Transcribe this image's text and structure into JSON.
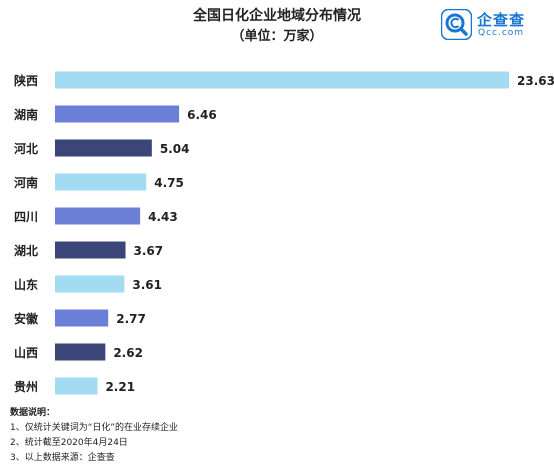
{
  "chart_data": {
    "type": "bar",
    "orientation": "horizontal",
    "title": "全国日化企业地域分布情况",
    "subtitle": "（单位：万家）",
    "categories": [
      "陕西",
      "湖南",
      "河北",
      "河南",
      "四川",
      "湖北",
      "山东",
      "安徽",
      "山西",
      "贵州"
    ],
    "values": [
      23.63,
      6.46,
      5.04,
      4.75,
      4.43,
      3.67,
      3.61,
      2.77,
      2.62,
      2.21
    ],
    "value_labels": [
      "23.63",
      "6.46",
      "5.04",
      "4.75",
      "4.43",
      "3.67",
      "3.61",
      "2.77",
      "2.62",
      "2.21"
    ],
    "colors": [
      "#a3dcf2",
      "#6b7fd7",
      "#3c4577",
      "#a3dcf2",
      "#6b7fd7",
      "#3c4577",
      "#a3dcf2",
      "#6b7fd7",
      "#3c4577",
      "#a3dcf2"
    ],
    "xlim": [
      0,
      23.63
    ],
    "grid": false,
    "legend": "none"
  },
  "logo": {
    "name": "企查查",
    "domain": "Qcc.com",
    "color": "#1976d2",
    "icon": "magnifier-c-icon"
  },
  "notes": {
    "title": "数据说明：",
    "items": [
      "1、仅统计关键词为“日化”的在业存续企业",
      "2、统计截至2020年4月24日",
      "3、以上数据来源：企查查"
    ]
  }
}
